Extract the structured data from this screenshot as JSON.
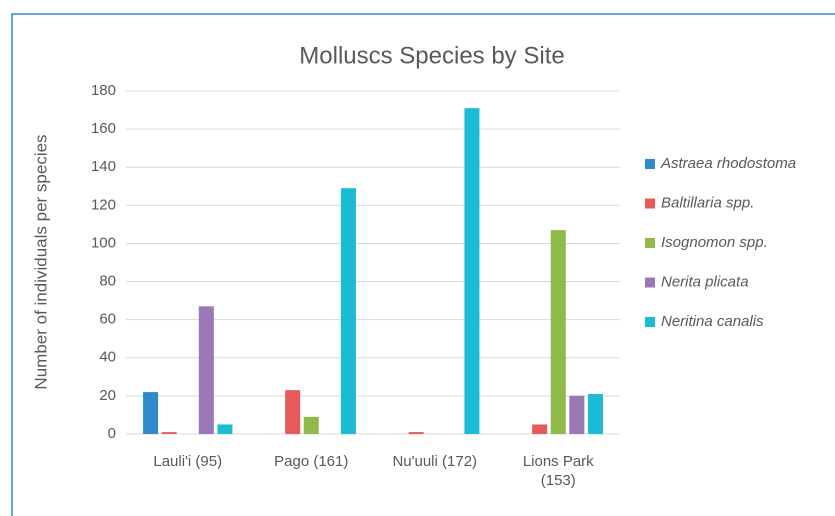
{
  "chart_data": {
    "type": "bar",
    "title": "Molluscs Species by Site",
    "y_label": "Number of individuals per species",
    "categories": [
      "Lauli'i (95)",
      "Pago (161)",
      "Nu'uuli (172)",
      "Lions Park (153)"
    ],
    "series": [
      {
        "name": "Astraea rhodostoma",
        "color": "#2e8bc9",
        "values": [
          22,
          0,
          0,
          0
        ]
      },
      {
        "name": "Baltillaria spp.",
        "color": "#e85a5a",
        "values": [
          1,
          23,
          1,
          5
        ]
      },
      {
        "name": "Isognomon spp.",
        "color": "#8fba4a",
        "values": [
          0,
          9,
          0,
          107
        ]
      },
      {
        "name": "Nerita plicata",
        "color": "#9a78b6",
        "values": [
          67,
          0,
          0,
          20
        ]
      },
      {
        "name": "Neritina canalis",
        "color": "#1cbcd4",
        "values": [
          5,
          129,
          171,
          21
        ]
      }
    ],
    "ylim": [
      0,
      180
    ],
    "yticks": [
      0,
      20,
      40,
      60,
      80,
      100,
      120,
      140,
      160,
      180
    ],
    "grid": true,
    "legend": "right"
  }
}
